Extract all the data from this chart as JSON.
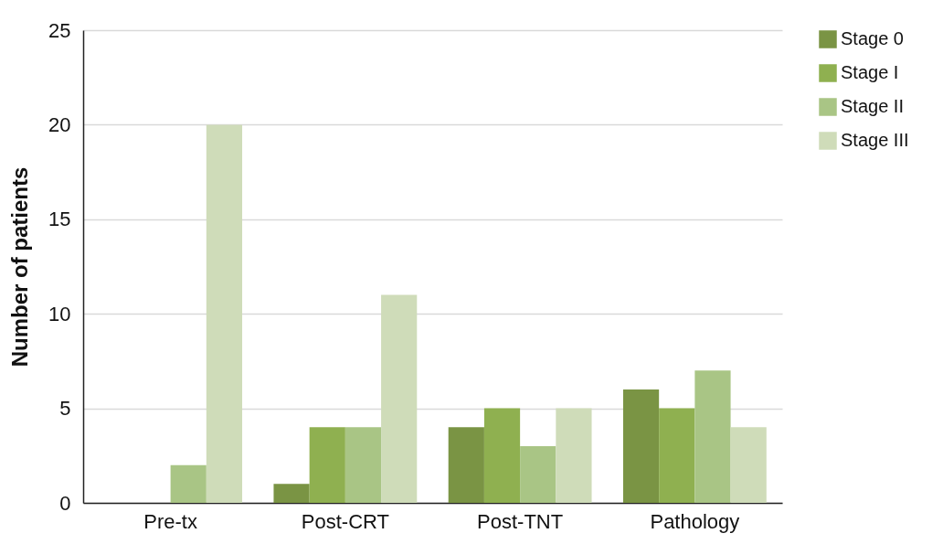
{
  "chart_data": {
    "type": "bar",
    "ylabel": "Number of patients",
    "categories": [
      "Pre-tx",
      "Post-CRT",
      "Post-TNT",
      "Pathology"
    ],
    "series": [
      {
        "name": "Stage 0",
        "color": "#7a9444",
        "values": [
          0,
          1,
          4,
          6
        ]
      },
      {
        "name": "Stage I",
        "color": "#8fb050",
        "values": [
          0,
          4,
          5,
          5
        ]
      },
      {
        "name": "Stage II",
        "color": "#a9c585",
        "values": [
          2,
          4,
          3,
          7
        ]
      },
      {
        "name": "Stage III",
        "color": "#cfdcb9",
        "values": [
          20,
          11,
          5,
          4
        ]
      }
    ],
    "ylim": [
      0,
      25
    ],
    "yticks": [
      0,
      5,
      10,
      15,
      20,
      25
    ],
    "grid": "y",
    "legend": "top right"
  }
}
